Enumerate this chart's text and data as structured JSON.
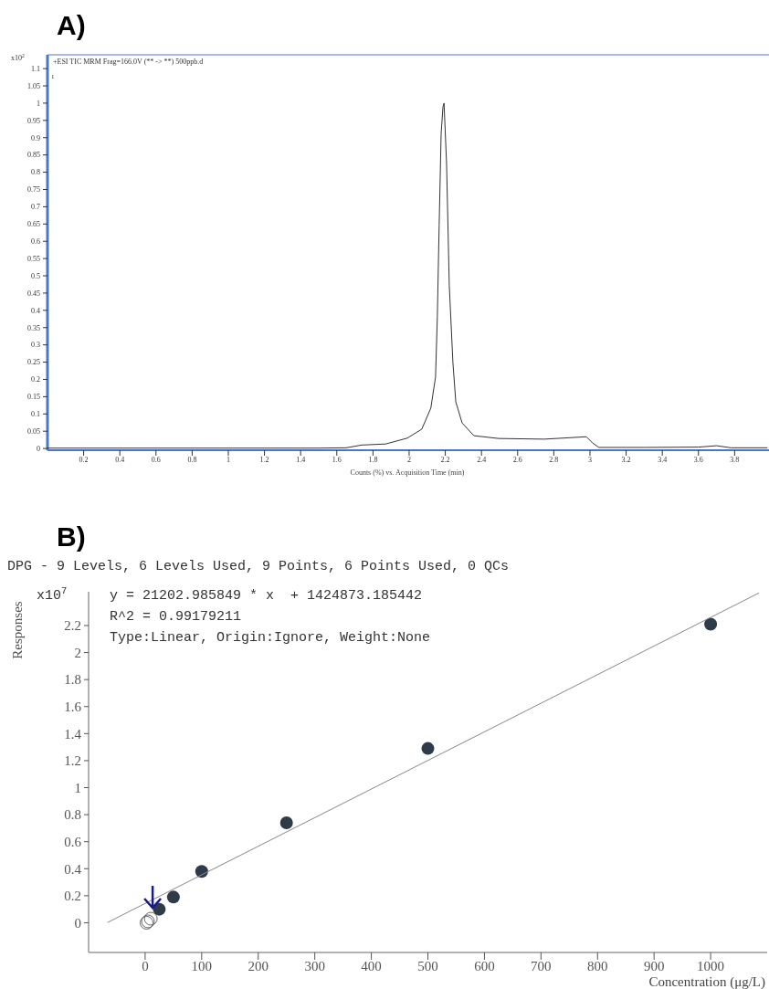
{
  "chart_data": [
    {
      "type": "line",
      "title": "A)",
      "subtitle": "+ESI TIC MRM Frag=166.0V (** -> **) 500ppb.d",
      "xlabel": "Counts (%) vs. Acquisition Time (min)",
      "annotations": [
        "x10$^{2}$",
        "1"
      ],
      "x": [
        0,
        0.5,
        1,
        1.5,
        1.652,
        1.738,
        1.87,
        1.99,
        2.07,
        2.12,
        2.146,
        2.156,
        2.166,
        2.177,
        2.187,
        2.193,
        2.207,
        2.222,
        2.242,
        2.258,
        2.293,
        2.358,
        2.495,
        2.747,
        2.98,
        3.014,
        3.05,
        3.3,
        3.6,
        3.7,
        3.78,
        3.98
      ],
      "values": [
        0.001,
        0.001,
        0.001,
        0.001,
        0.002,
        0.01,
        0.013,
        0.03,
        0.056,
        0.117,
        0.207,
        0.382,
        0.647,
        0.912,
        0.989,
        1.0,
        0.825,
        0.472,
        0.249,
        0.135,
        0.074,
        0.037,
        0.029,
        0.027,
        0.034,
        0.016,
        0.003,
        0.003,
        0.004,
        0.008,
        0.002,
        0.002
      ],
      "color": "#333333",
      "xlim": [
        0,
        3.98
      ],
      "ylim": [
        -0.005,
        1.14
      ],
      "xticks": [
        0.2,
        0.4,
        0.6,
        0.8,
        1,
        1.2,
        1.4,
        1.6,
        1.8,
        2,
        2.2,
        2.4,
        2.6,
        2.8,
        3,
        3.2,
        3.4,
        3.6,
        3.8
      ],
      "yticks": [
        0,
        0.05,
        0.1,
        0.15,
        0.2,
        0.25,
        0.3,
        0.35,
        0.4,
        0.45,
        0.5,
        0.55,
        0.6,
        0.65,
        0.7,
        0.75,
        0.8,
        0.85,
        0.9,
        0.95,
        1,
        1.05,
        1.1
      ]
    },
    {
      "type": "scatter",
      "title": "B)",
      "subtitle": "DPG - 9 Levels, 6 Levels Used, 9 Points, 6 Points Used, 0 QCs",
      "xlabel": "Concentration (μg/L)",
      "ylabel": "Responses",
      "annotations": [
        "x10$^{7}$",
        "y = 21202.985849 * x  + 1424873.185442",
        "R^2 = 0.99179211",
        "Type:Linear, Origin:Ignore, Weight:None"
      ],
      "marker": "circle",
      "xlim": [
        -100,
        1100
      ],
      "ylim": [
        -0.22,
        2.45
      ],
      "xticks": [
        0,
        100,
        200,
        300,
        400,
        500,
        600,
        700,
        800,
        900,
        1000
      ],
      "yticks": [
        0,
        0.2,
        0.4,
        0.6,
        0.8,
        1,
        1.2,
        1.4,
        1.6,
        1.8,
        2,
        2.2
      ],
      "series": [
        {
          "color": "#2f3b48",
          "x": [
            25,
            50,
            100,
            250,
            500,
            1000
          ],
          "values": [
            0.1,
            0.19,
            0.38,
            0.74,
            1.29,
            2.21
          ]
        },
        {
          "color": "#666666",
          "x": [
            2.5,
            5,
            10
          ],
          "values": [
            0,
            0.01,
            0.03
          ]
        },
        {
          "type": "line",
          "marker": "none",
          "color": "#888888",
          "x": [
            -66,
            1085
          ],
          "values": [
            0.003,
            2.44
          ]
        }
      ]
    }
  ]
}
